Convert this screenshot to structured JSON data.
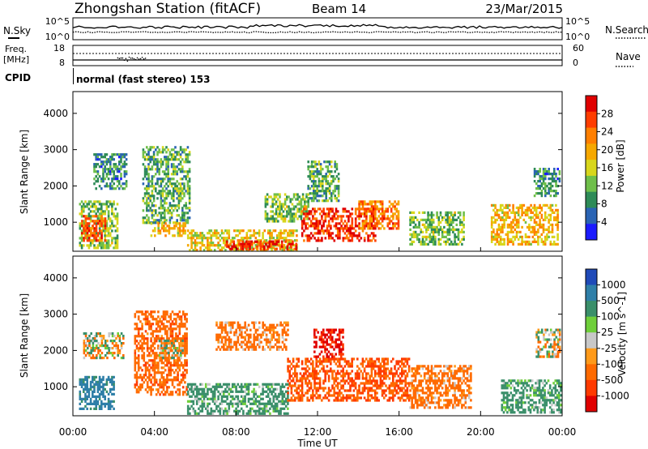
{
  "header": {
    "station": "Zhongshan Station (fitACF)",
    "beam": "Beam 14",
    "date": "23/Mar/2015"
  },
  "noise_panel": {
    "left_label": "N.Sky",
    "right_label": "N.Search",
    "left_ticks": [
      "10^5",
      "10^0"
    ],
    "right_ticks": [
      "10^5",
      "10^0"
    ]
  },
  "freq_panel": {
    "left_label_line1": "Freq.",
    "left_label_line2": "[MHz]",
    "right_label": "Nave",
    "left_ticks": [
      "18",
      "8"
    ],
    "right_ticks": [
      "60",
      "0"
    ]
  },
  "cpid": {
    "label": "CPID",
    "text": "normal (fast stereo) 153"
  },
  "time_axis": {
    "label": "Time UT",
    "ticks": [
      "00:00",
      "04:00",
      "08:00",
      "12:00",
      "16:00",
      "20:00",
      "00:00"
    ]
  },
  "colors": {
    "power_scale": [
      "#1b1bff",
      "#2a64b4",
      "#2e8b57",
      "#6fbf4a",
      "#d8d61c",
      "#f6a800",
      "#ff7f00",
      "#ff3d00",
      "#e00000"
    ],
    "velocity_scale": [
      "#1f4ab8",
      "#2f7fa8",
      "#3a8f6a",
      "#6fcf3a",
      "#c8c8c8",
      "#ff9a1a",
      "#ff6a00",
      "#ff3a00",
      "#e00000"
    ]
  },
  "chart_data": [
    {
      "type": "heatmap",
      "title": "",
      "xlabel": "",
      "ylabel": "Slant Range [km]",
      "x_range_hours": [
        0,
        24
      ],
      "ylim": [
        200,
        4600
      ],
      "yticks": [
        "1000",
        "2000",
        "3000",
        "4000"
      ],
      "colorbar": {
        "label": "Power [dB]",
        "ticks": [
          "4",
          "8",
          "12",
          "16",
          "20",
          "24",
          "28"
        ],
        "range": [
          0,
          30
        ]
      },
      "regions": [
        {
          "t0": 0.3,
          "t1": 2.2,
          "r0": 300,
          "r1": 1600,
          "value": 12
        },
        {
          "t0": 0.4,
          "t1": 1.6,
          "r0": 500,
          "r1": 1200,
          "value": 24
        },
        {
          "t0": 1.0,
          "t1": 2.6,
          "r0": 1900,
          "r1": 2900,
          "value": 8
        },
        {
          "t0": 3.4,
          "t1": 5.7,
          "r0": 1000,
          "r1": 3100,
          "value": 10
        },
        {
          "t0": 3.8,
          "t1": 5.5,
          "r0": 600,
          "r1": 1000,
          "value": 18
        },
        {
          "t0": 5.6,
          "t1": 11.0,
          "r0": 250,
          "r1": 800,
          "value": 16
        },
        {
          "t0": 7.5,
          "t1": 11.0,
          "r0": 250,
          "r1": 500,
          "value": 27
        },
        {
          "t0": 9.4,
          "t1": 11.5,
          "r0": 1000,
          "r1": 1800,
          "value": 12
        },
        {
          "t0": 11.2,
          "t1": 14.8,
          "r0": 500,
          "r1": 1400,
          "value": 26
        },
        {
          "t0": 11.5,
          "t1": 13.0,
          "r0": 1600,
          "r1": 2700,
          "value": 10
        },
        {
          "t0": 14.0,
          "t1": 16.0,
          "r0": 800,
          "r1": 1600,
          "value": 22
        },
        {
          "t0": 16.5,
          "t1": 19.2,
          "r0": 400,
          "r1": 1300,
          "value": 12
        },
        {
          "t0": 20.5,
          "t1": 23.8,
          "r0": 400,
          "r1": 1500,
          "value": 18
        },
        {
          "t0": 22.6,
          "t1": 23.9,
          "r0": 1700,
          "r1": 2500,
          "value": 8
        }
      ]
    },
    {
      "type": "heatmap",
      "title": "",
      "xlabel": "Time UT",
      "ylabel": "Slant Range [km]",
      "x_range_hours": [
        0,
        24
      ],
      "ylim": [
        200,
        4600
      ],
      "yticks": [
        "1000",
        "2000",
        "3000",
        "4000"
      ],
      "colorbar": {
        "label": "Velocity [m s^-1]",
        "ticks": [
          "1000",
          "500",
          "100",
          "25",
          "-25",
          "-100",
          "-500",
          "-1000"
        ],
        "range": [
          1000,
          -1000
        ]
      },
      "regions": [
        {
          "t0": 0.3,
          "t1": 2.0,
          "r0": 400,
          "r1": 1300,
          "value": 400
        },
        {
          "t0": 0.5,
          "t1": 2.5,
          "r0": 1800,
          "r1": 2500,
          "value": 0
        },
        {
          "t0": 3.0,
          "t1": 5.6,
          "r0": 800,
          "r1": 3100,
          "value": -200
        },
        {
          "t0": 4.2,
          "t1": 5.4,
          "r0": 1800,
          "r1": 2300,
          "value": 0
        },
        {
          "t0": 5.6,
          "t1": 10.5,
          "r0": 250,
          "r1": 1100,
          "value": 150
        },
        {
          "t0": 7.0,
          "t1": 10.5,
          "r0": 2000,
          "r1": 2800,
          "value": -150
        },
        {
          "t0": 10.5,
          "t1": 16.5,
          "r0": 600,
          "r1": 1800,
          "value": -300
        },
        {
          "t0": 11.8,
          "t1": 13.2,
          "r0": 1800,
          "r1": 2600,
          "value": -800
        },
        {
          "t0": 16.5,
          "t1": 19.5,
          "r0": 400,
          "r1": 1600,
          "value": -150
        },
        {
          "t0": 21.0,
          "t1": 23.9,
          "r0": 300,
          "r1": 1200,
          "value": 150
        },
        {
          "t0": 22.7,
          "t1": 23.9,
          "r0": 1800,
          "r1": 2600,
          "value": 0
        }
      ]
    }
  ]
}
